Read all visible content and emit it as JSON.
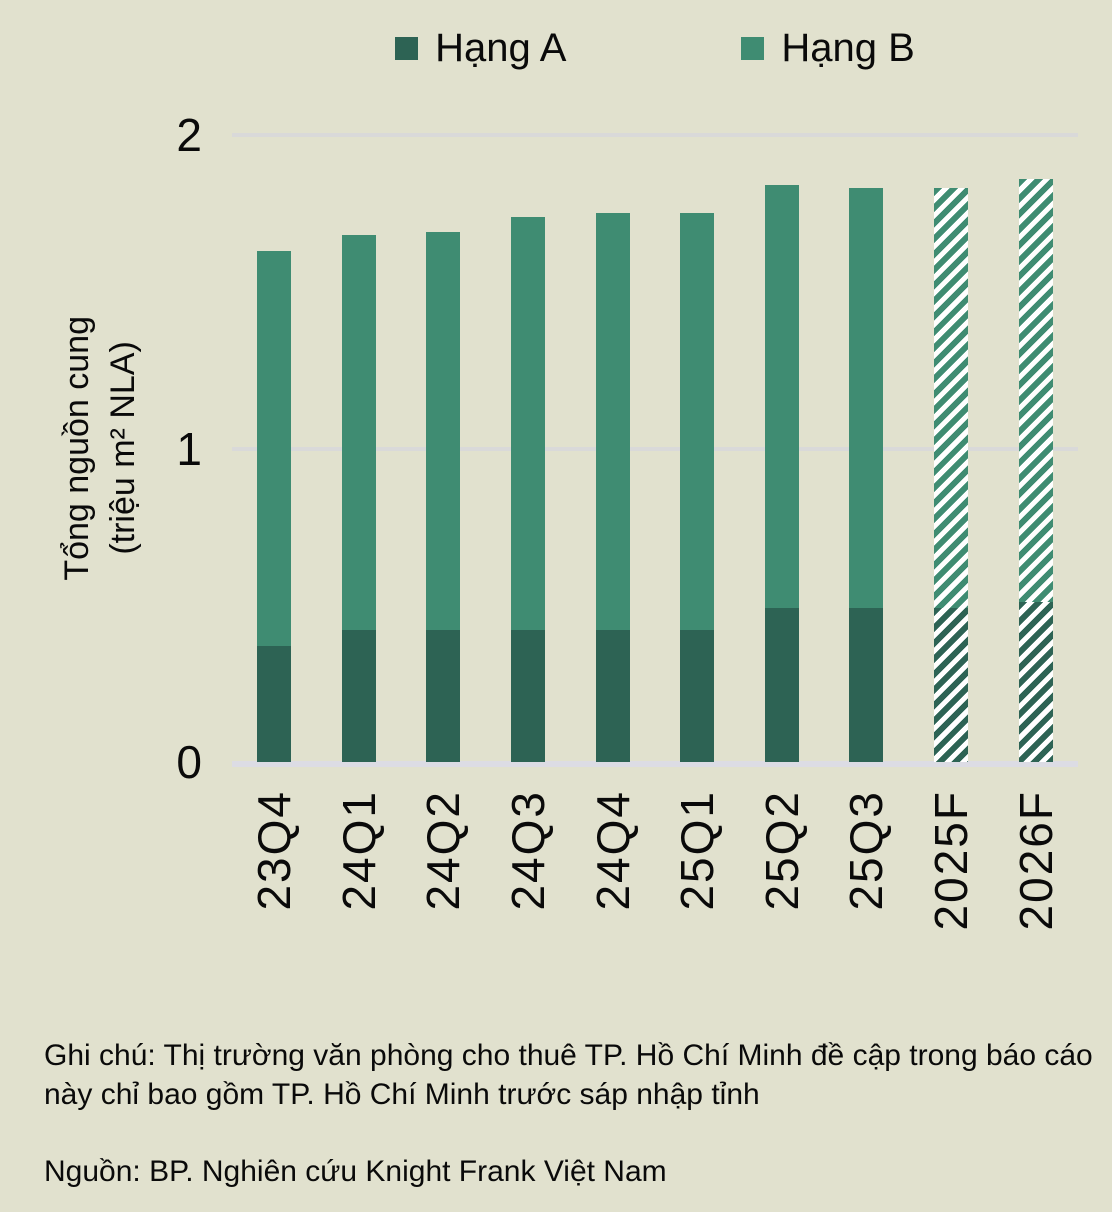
{
  "page": {
    "background": "#e1e1ce"
  },
  "legend": {
    "items": [
      {
        "label": "Hạng A",
        "color": "#2d6354"
      },
      {
        "label": "Hạng B",
        "color": "#3f8c72"
      }
    ]
  },
  "chart_data": {
    "type": "bar",
    "stacked": true,
    "ylabel": "Tổng nguồn cung\n(triệu m² NLA)",
    "categories": [
      "23Q4",
      "24Q1",
      "24Q2",
      "24Q3",
      "24Q4",
      "25Q1",
      "25Q2",
      "25Q3",
      "2025F",
      "2026F"
    ],
    "series": [
      {
        "name": "Hạng A",
        "color": "#2d6354",
        "values": [
          0.37,
          0.42,
          0.42,
          0.42,
          0.42,
          0.42,
          0.49,
          0.49,
          0.49,
          0.51
        ]
      },
      {
        "name": "Hạng B",
        "color": "#3f8c72",
        "values": [
          1.26,
          1.26,
          1.27,
          1.32,
          1.33,
          1.33,
          1.35,
          1.34,
          1.34,
          1.35
        ]
      }
    ],
    "hatched_indices": [
      8,
      9
    ],
    "hatch_style": "white background with diagonal green stripes (forecast bars)",
    "yticks": [
      0,
      1,
      2
    ],
    "ylim": [
      0,
      2
    ],
    "grid": "horizontal",
    "legend_position": "top-center"
  },
  "note": "Ghi chú: Thị trường văn phòng cho thuê TP. Hồ Chí Minh đề cập trong báo cáo này chỉ bao gồm TP. Hồ Chí Minh trước sáp nhập tỉnh",
  "source": "Nguồn: BP. Nghiên cứu Knight Frank Việt Nam"
}
